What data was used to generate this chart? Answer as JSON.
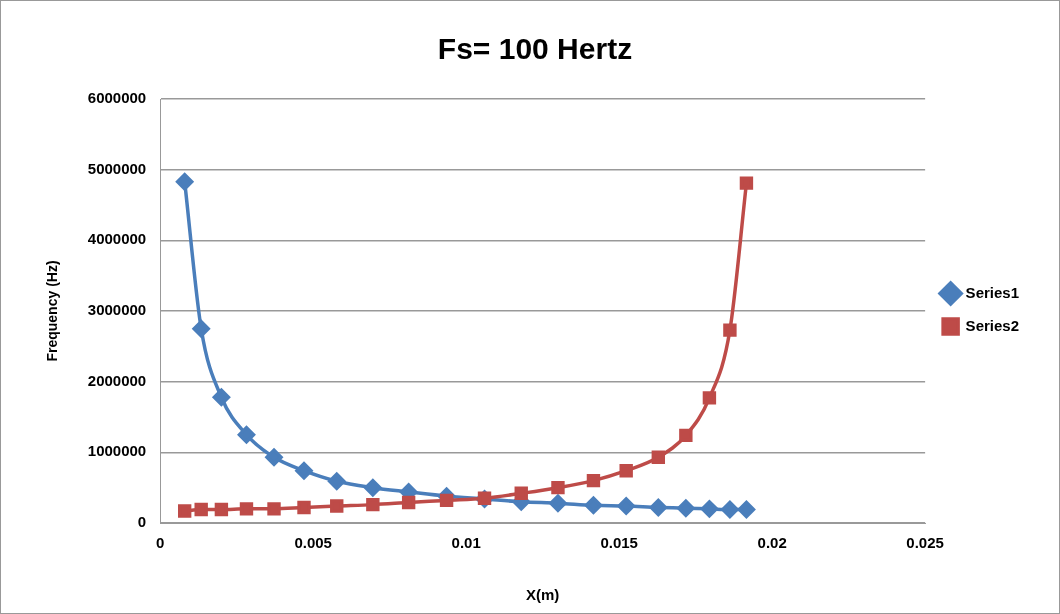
{
  "chart_data": {
    "type": "line",
    "title": "Fs= 100 Hertz",
    "xlabel": "X(m)",
    "ylabel": "Frequency (Hz)",
    "x": [
      0.0008,
      0.00134,
      0.002,
      0.00282,
      0.00372,
      0.0047,
      0.00577,
      0.00695,
      0.00812,
      0.00936,
      0.0106,
      0.0118,
      0.013,
      0.01416,
      0.01523,
      0.01628,
      0.01718,
      0.01795,
      0.01862,
      0.01916
    ],
    "series": [
      {
        "name": "Series1",
        "color": "#4a7ebb",
        "marker": "diamond",
        "values": [
          4830000,
          2750000,
          1780000,
          1250000,
          930000,
          740000,
          590000,
          500000,
          440000,
          380000,
          340000,
          300000,
          280000,
          250000,
          240000,
          220000,
          210000,
          200000,
          190000,
          190000
        ]
      },
      {
        "name": "Series2",
        "color": "#be4b48",
        "marker": "square",
        "values": [
          170000,
          190000,
          190000,
          200000,
          200000,
          220000,
          240000,
          260000,
          290000,
          320000,
          350000,
          420000,
          500000,
          600000,
          740000,
          930000,
          1240000,
          1770000,
          2730000,
          4810000
        ]
      }
    ],
    "xlim": [
      0,
      0.025
    ],
    "xticks": [
      0,
      0.005,
      0.01,
      0.015,
      0.02,
      0.025
    ],
    "ylim": [
      0,
      6000000
    ],
    "yticks": [
      0,
      1000000,
      2000000,
      3000000,
      4000000,
      5000000,
      6000000
    ],
    "grid": "y",
    "legend": "right",
    "line_style": "solid"
  }
}
